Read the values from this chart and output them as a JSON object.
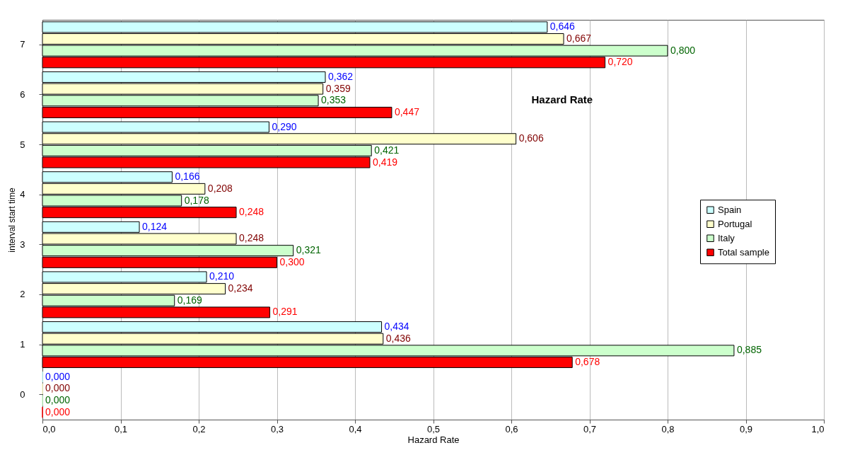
{
  "chart_data": {
    "type": "bar",
    "orientation": "horizontal",
    "title": "Hazard Rate",
    "xlabel": "Hazard Rate",
    "ylabel": "interval start time",
    "categories": [
      "7",
      "6",
      "5",
      "4",
      "3",
      "2",
      "1",
      "0"
    ],
    "series": [
      {
        "name": "Spain",
        "color": "#ccffff",
        "values": [
          0.646,
          0.362,
          0.29,
          0.166,
          0.124,
          0.21,
          0.434,
          0.0
        ],
        "value_labels": [
          "0,646",
          "0,362",
          "0,290",
          "0,166",
          "0,124",
          "0,210",
          "0,434",
          "0,000"
        ]
      },
      {
        "name": "Portugal",
        "color": "#ffffcc",
        "values": [
          0.667,
          0.359,
          0.606,
          0.208,
          0.248,
          0.234,
          0.436,
          0.0
        ],
        "value_labels": [
          "0,667",
          "0,359",
          "0,606",
          "0,208",
          "0,248",
          "0,234",
          "0,436",
          "0,000"
        ]
      },
      {
        "name": "Italy",
        "color": "#ccffcc",
        "values": [
          0.8,
          0.353,
          0.421,
          0.178,
          0.321,
          0.169,
          0.885,
          0.0
        ],
        "value_labels": [
          "0,800",
          "0,353",
          "0,421",
          "0,178",
          "0,321",
          "0,169",
          "0,885",
          "0,000"
        ]
      },
      {
        "name": "Total sample",
        "color": "#ff0000",
        "values": [
          0.72,
          0.447,
          0.419,
          0.248,
          0.3,
          0.291,
          0.678,
          0.0
        ],
        "value_labels": [
          "0,720",
          "0,447",
          "0,419",
          "0,248",
          "0,300",
          "0,291",
          "0,678",
          "0,000"
        ]
      }
    ],
    "xlim": [
      0,
      1
    ],
    "xticks": [
      {
        "value": 0,
        "label": "0,0"
      },
      {
        "value": 0.1,
        "label": "0,1"
      },
      {
        "value": 0.2,
        "label": "0,2"
      },
      {
        "value": 0.3,
        "label": "0,3"
      },
      {
        "value": 0.4,
        "label": "0,4"
      },
      {
        "value": 0.5,
        "label": "0,5"
      },
      {
        "value": 0.6,
        "label": "0,6"
      },
      {
        "value": 0.7,
        "label": "0,7"
      },
      {
        "value": 0.8,
        "label": "0,8"
      },
      {
        "value": 0.9,
        "label": "0,9"
      },
      {
        "value": 1,
        "label": "1,0"
      }
    ],
    "grid": "x",
    "legend": "right"
  }
}
